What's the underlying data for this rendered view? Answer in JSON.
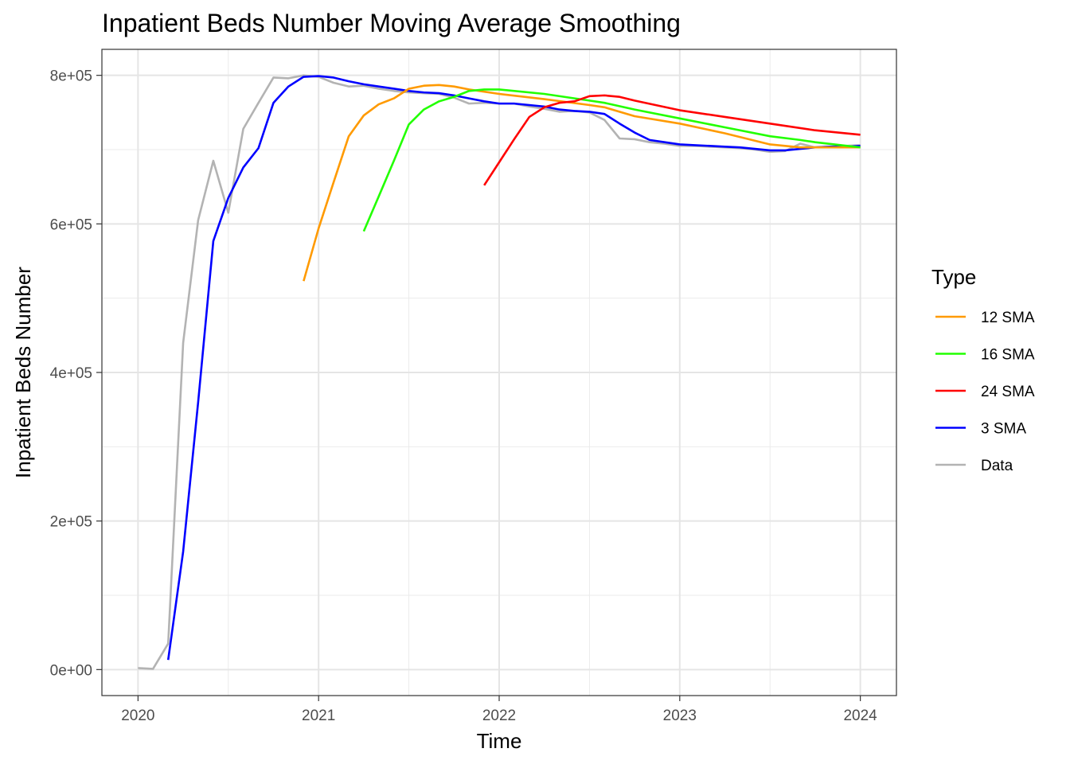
{
  "chart_data": {
    "type": "line",
    "title": "Inpatient Beds Number Moving Average Smoothing",
    "xlabel": "Time",
    "ylabel": "Inpatient Beds Number",
    "xlim": [
      2019.8,
      2024.2
    ],
    "ylim": [
      -35000,
      835000
    ],
    "x_ticks": [
      2020,
      2021,
      2022,
      2023,
      2024
    ],
    "x_tick_labels": [
      "2020",
      "2021",
      "2022",
      "2023",
      "2024"
    ],
    "y_ticks": [
      0,
      200000,
      400000,
      600000,
      800000
    ],
    "y_tick_labels": [
      "0e+00",
      "2e+05",
      "4e+05",
      "6e+05",
      "8e+05"
    ],
    "grid": true,
    "legend": {
      "title": "Type",
      "placement": "right",
      "entries": [
        "12 SMA",
        "16 SMA",
        "24 SMA",
        "3 SMA",
        "Data"
      ]
    },
    "series": [
      {
        "name": "Data",
        "color": "#b3b3b3",
        "x": [
          2020.0,
          2020.083,
          2020.167,
          2020.25,
          2020.333,
          2020.417,
          2020.5,
          2020.583,
          2020.667,
          2020.75,
          2020.833,
          2020.917,
          2021.0,
          2021.083,
          2021.167,
          2021.25,
          2021.333,
          2021.417,
          2021.5,
          2021.583,
          2021.667,
          2021.75,
          2021.833,
          2021.917,
          2022.0,
          2022.083,
          2022.167,
          2022.25,
          2022.333,
          2022.417,
          2022.5,
          2022.583,
          2022.667,
          2022.75,
          2022.833,
          2022.917,
          2023.0,
          2023.083,
          2023.167,
          2023.25,
          2023.333,
          2023.417,
          2023.5,
          2023.583,
          2023.667,
          2023.75,
          2023.833,
          2023.917,
          2024.0
        ],
        "y": [
          2000,
          1000,
          35000,
          440000,
          605000,
          685000,
          615000,
          728000,
          763000,
          797000,
          796000,
          800000,
          798000,
          790000,
          785000,
          786000,
          782000,
          779000,
          777000,
          776000,
          775000,
          770000,
          762000,
          763000,
          762000,
          762000,
          758000,
          755000,
          751000,
          752000,
          750000,
          740000,
          715000,
          714000,
          710000,
          708000,
          705000,
          705000,
          704000,
          703000,
          702000,
          700000,
          697000,
          698000,
          708000,
          703000,
          704000,
          705000,
          706000
        ]
      },
      {
        "name": "3 SMA",
        "color": "#0000ff",
        "x": [
          2020.167,
          2020.25,
          2020.333,
          2020.417,
          2020.5,
          2020.583,
          2020.667,
          2020.75,
          2020.833,
          2020.917,
          2021.0,
          2021.083,
          2021.167,
          2021.25,
          2021.333,
          2021.417,
          2021.5,
          2021.583,
          2021.667,
          2021.75,
          2021.833,
          2021.917,
          2022.0,
          2022.083,
          2022.167,
          2022.25,
          2022.333,
          2022.417,
          2022.5,
          2022.583,
          2022.667,
          2022.75,
          2022.833,
          2022.917,
          2023.0,
          2023.083,
          2023.167,
          2023.25,
          2023.333,
          2023.417,
          2023.5,
          2023.583,
          2023.667,
          2023.75,
          2023.833,
          2023.917,
          2024.0
        ],
        "y": [
          13000,
          159000,
          360000,
          577000,
          635000,
          676000,
          702000,
          763000,
          785000,
          798000,
          799000,
          797000,
          792000,
          788000,
          785000,
          782000,
          779000,
          777000,
          776000,
          773000,
          769000,
          765000,
          762000,
          762000,
          760000,
          758000,
          754000,
          752000,
          751000,
          748000,
          735000,
          723000,
          713000,
          710000,
          707000,
          706000,
          705000,
          704000,
          703000,
          701000,
          699000,
          699000,
          701000,
          703000,
          704000,
          704000,
          705000
        ]
      },
      {
        "name": "12 SMA",
        "color": "#ff9a00",
        "x": [
          2020.917,
          2021.0,
          2021.083,
          2021.167,
          2021.25,
          2021.333,
          2021.417,
          2021.5,
          2021.583,
          2021.667,
          2021.75,
          2021.833,
          2021.917,
          2022.0,
          2022.25,
          2022.5,
          2022.583,
          2022.75,
          2023.0,
          2023.25,
          2023.5,
          2023.667,
          2023.75,
          2024.0
        ],
        "y": [
          523000,
          594000,
          656000,
          718000,
          746000,
          761000,
          769000,
          782000,
          786000,
          787000,
          785000,
          781000,
          778000,
          775000,
          768000,
          760000,
          757000,
          745000,
          735000,
          722000,
          707000,
          703000,
          703000,
          703000
        ]
      },
      {
        "name": "16 SMA",
        "color": "#22ff00",
        "x": [
          2021.25,
          2021.333,
          2021.417,
          2021.5,
          2021.583,
          2021.667,
          2021.75,
          2021.833,
          2021.917,
          2022.0,
          2022.25,
          2022.5,
          2022.583,
          2022.75,
          2023.0,
          2023.25,
          2023.5,
          2023.667,
          2023.75,
          2024.0
        ],
        "y": [
          590000,
          637000,
          685000,
          734000,
          754000,
          765000,
          771000,
          779000,
          781000,
          781000,
          775000,
          766000,
          763000,
          754000,
          742000,
          730000,
          718000,
          713000,
          710000,
          703000
        ]
      },
      {
        "name": "24 SMA",
        "color": "#ff0000",
        "x": [
          2021.917,
          2022.0,
          2022.083,
          2022.167,
          2022.25,
          2022.333,
          2022.417,
          2022.5,
          2022.583,
          2022.667,
          2022.75,
          2023.0,
          2023.25,
          2023.5,
          2023.75,
          2024.0
        ],
        "y": [
          652000,
          683000,
          714000,
          744000,
          757000,
          763000,
          765000,
          772000,
          773000,
          771000,
          766000,
          753000,
          744000,
          735000,
          726000,
          720000
        ]
      }
    ]
  }
}
